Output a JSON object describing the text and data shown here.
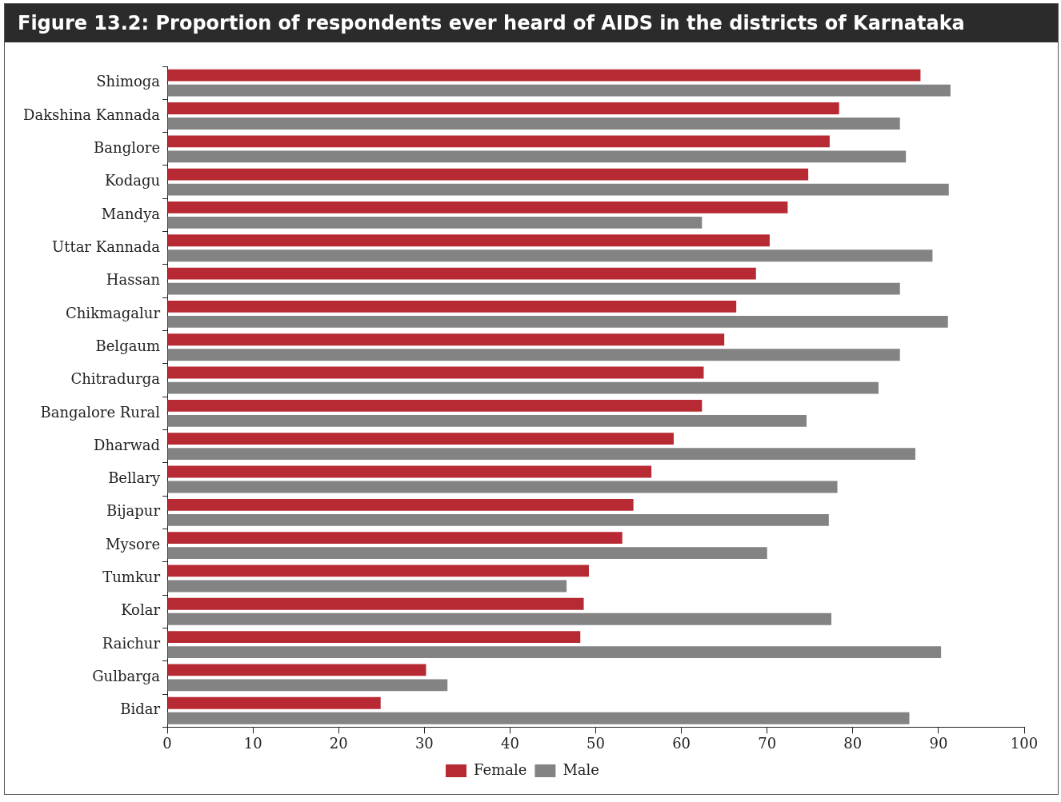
{
  "chart_data": {
    "type": "bar",
    "orientation": "horizontal",
    "title": "Figure 13.2: Proportion of respondents ever heard of AIDS in the districts of Karnataka",
    "categories": [
      "Shimoga",
      "Dakshina Kannada",
      "Banglore",
      "Kodagu",
      "Mandya",
      "Uttar Kannada",
      "Hassan",
      "Chikmagalur",
      "Belgaum",
      "Chitradurga",
      "Bangalore Rural",
      "Dharwad",
      "Bellary",
      "Bijapur",
      "Mysore",
      "Tumkur",
      "Kolar",
      "Raichur",
      "Gulbarga",
      "Bidar"
    ],
    "series": [
      {
        "name": "Female",
        "color": "#b72a33",
        "values": [
          87.9,
          78.4,
          77.3,
          74.8,
          72.4,
          70.3,
          68.7,
          66.4,
          65.0,
          62.6,
          62.4,
          59.1,
          56.5,
          54.4,
          53.1,
          49.2,
          48.6,
          48.2,
          30.2,
          24.9
        ]
      },
      {
        "name": "Male",
        "color": "#838383",
        "values": [
          91.4,
          85.5,
          86.2,
          91.2,
          62.4,
          89.3,
          85.5,
          91.1,
          85.5,
          83.0,
          74.6,
          87.3,
          78.2,
          77.2,
          70.0,
          46.6,
          77.5,
          90.3,
          32.7,
          86.6
        ]
      }
    ],
    "xlim": [
      0,
      100
    ],
    "xticks": [
      0,
      10,
      20,
      30,
      40,
      50,
      60,
      70,
      80,
      90,
      100
    ],
    "grid": false,
    "legend": "bottom"
  }
}
